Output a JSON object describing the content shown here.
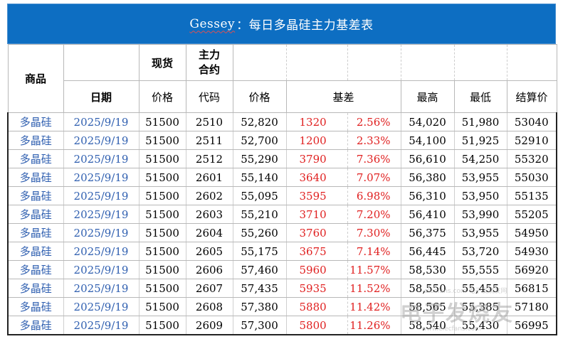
{
  "title": {
    "brand": "Gessey",
    "rest": "：每日多晶硅主力基差表"
  },
  "header": {
    "product": "商品",
    "spot": "现货",
    "main_contract": "主力\n合约",
    "date": "日期",
    "spot_price": "价格",
    "code": "代码",
    "price": "价格",
    "basis": "基差",
    "high": "最高",
    "low": "最低",
    "settle": "结算价"
  },
  "rows": [
    {
      "product": "多晶硅",
      "date": "2025/9/19",
      "spot": "51500",
      "code": "2510",
      "price": "52,820",
      "basis": "1320",
      "pct": "2.56%",
      "high": "54,020",
      "low": "51,980",
      "settle": "53040"
    },
    {
      "product": "多晶硅",
      "date": "2025/9/19",
      "spot": "51500",
      "code": "2511",
      "price": "52,700",
      "basis": "1200",
      "pct": "2.33%",
      "high": "54,100",
      "low": "51,925",
      "settle": "52910"
    },
    {
      "product": "多晶硅",
      "date": "2025/9/19",
      "spot": "51500",
      "code": "2512",
      "price": "55,290",
      "basis": "3790",
      "pct": "7.36%",
      "high": "56,610",
      "low": "54,250",
      "settle": "55320"
    },
    {
      "product": "多晶硅",
      "date": "2025/9/19",
      "spot": "51500",
      "code": "2601",
      "price": "55,140",
      "basis": "3640",
      "pct": "7.07%",
      "high": "56,380",
      "low": "53,955",
      "settle": "55030"
    },
    {
      "product": "多晶硅",
      "date": "2025/9/19",
      "spot": "51500",
      "code": "2602",
      "price": "55,095",
      "basis": "3595",
      "pct": "6.98%",
      "high": "56,310",
      "low": "53,950",
      "settle": "55135"
    },
    {
      "product": "多晶硅",
      "date": "2025/9/19",
      "spot": "51500",
      "code": "2603",
      "price": "55,210",
      "basis": "3710",
      "pct": "7.20%",
      "high": "56,410",
      "low": "53,990",
      "settle": "55205"
    },
    {
      "product": "多晶硅",
      "date": "2025/9/19",
      "spot": "51500",
      "code": "2604",
      "price": "55,260",
      "basis": "3760",
      "pct": "7.30%",
      "high": "56,375",
      "low": "53,955",
      "settle": "54950"
    },
    {
      "product": "多晶硅",
      "date": "2025/9/19",
      "spot": "51500",
      "code": "2605",
      "price": "55,175",
      "basis": "3675",
      "pct": "7.14%",
      "high": "56,445",
      "low": "53,720",
      "settle": "54930"
    },
    {
      "product": "多晶硅",
      "date": "2025/9/19",
      "spot": "51500",
      "code": "2606",
      "price": "57,460",
      "basis": "5960",
      "pct": "11.57%",
      "high": "58,530",
      "low": "55,555",
      "settle": "56920"
    },
    {
      "product": "多晶硅",
      "date": "2025/9/19",
      "spot": "51500",
      "code": "2607",
      "price": "57,435",
      "basis": "5935",
      "pct": "11.52%",
      "high": "58,550",
      "low": "55,455",
      "settle": "56815"
    },
    {
      "product": "多晶硅",
      "date": "2025/9/19",
      "spot": "51500",
      "code": "2608",
      "price": "57,380",
      "basis": "5880",
      "pct": "11.42%",
      "high": "58,565",
      "low": "55,385",
      "settle": "57180"
    },
    {
      "product": "多晶硅",
      "date": "2025/9/19",
      "spot": "51500",
      "code": "2609",
      "price": "57,300",
      "basis": "5800",
      "pct": "11.26%",
      "high": "58,540",
      "low": "55,430",
      "settle": "56995"
    }
  ],
  "colors": {
    "title_bg": "#0d6ec2",
    "link_blue": "#2f5fb0",
    "basis_red": "#e02020"
  },
  "watermark": {
    "text": "电子发烧友",
    "line1": "elecfans.com 电子发烧友网",
    "line2": "www.elecfans.com"
  }
}
